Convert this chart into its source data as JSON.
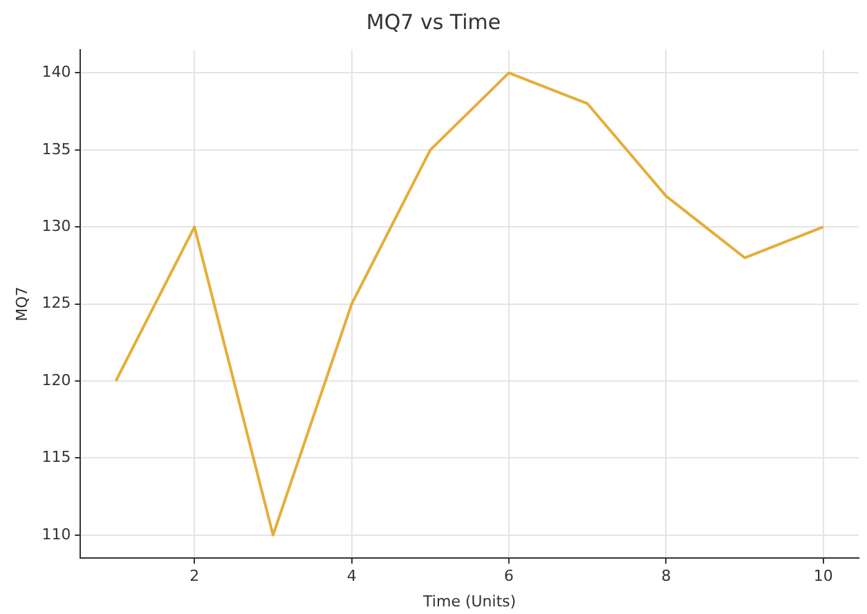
{
  "chart_data": {
    "type": "line",
    "title": "MQ7 vs Time",
    "xlabel": "Time (Units)",
    "ylabel": "MQ7",
    "x": [
      1,
      2,
      3,
      4,
      5,
      6,
      7,
      8,
      9,
      10
    ],
    "series": [
      {
        "color": "#e5ae38",
        "values": [
          120,
          130,
          110,
          125,
          135,
          140,
          138,
          132,
          128,
          130
        ]
      }
    ],
    "xlim": [
      0.55,
      10.45
    ],
    "xticks": [
      2,
      4,
      6,
      8,
      10
    ],
    "ylim": [
      108.5,
      141.5
    ],
    "yticks": [
      110,
      115,
      120,
      125,
      130,
      135,
      140
    ],
    "grid": true,
    "legend": false,
    "marker": "none",
    "line_style": "solid"
  }
}
